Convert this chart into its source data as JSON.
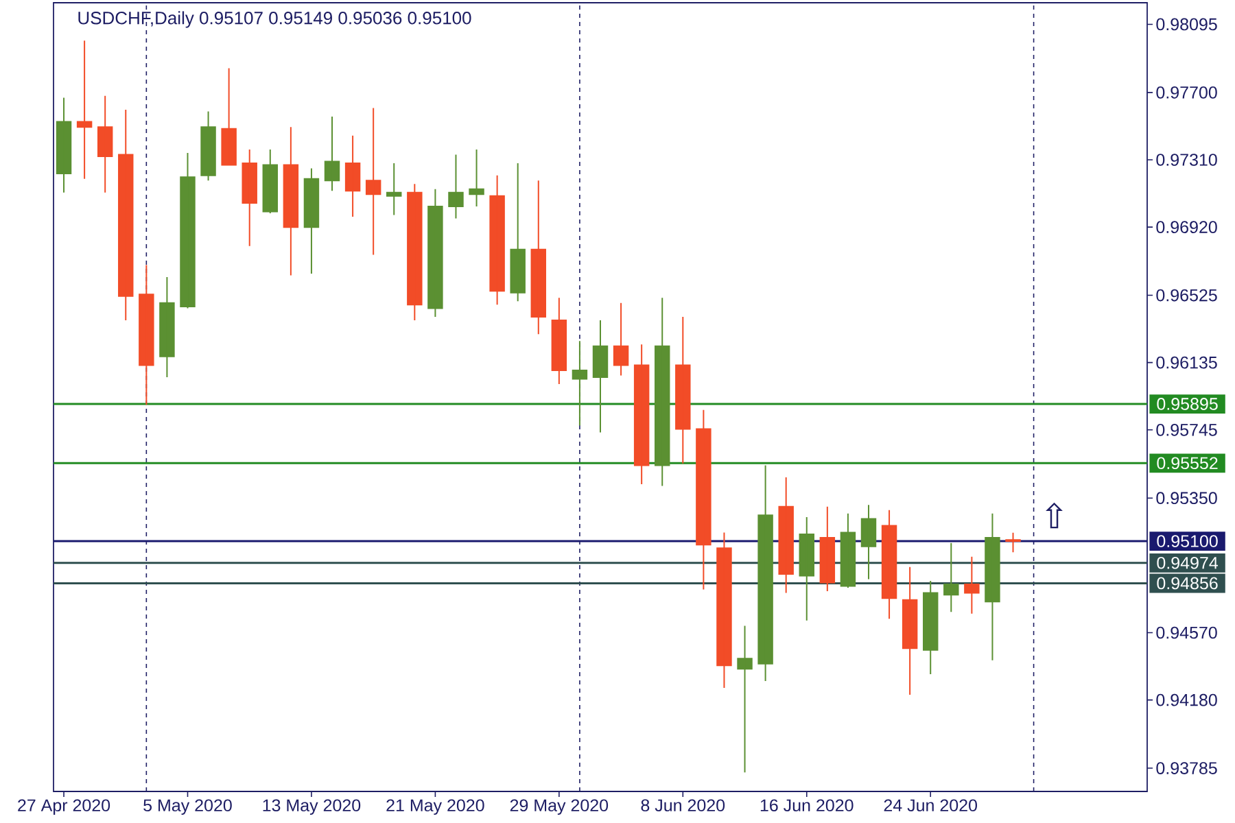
{
  "chart_data": {
    "type": "candlestick",
    "title": "USDCHF,Daily 0.95107 0.95149 0.95036 0.95100",
    "categories": [
      "27 Apr 2020",
      null,
      null,
      null,
      null,
      null,
      "5 May 2020",
      null,
      null,
      null,
      null,
      null,
      "13 May 2020",
      null,
      null,
      null,
      null,
      null,
      "21 May 2020",
      null,
      null,
      null,
      null,
      null,
      "29 May 2020",
      null,
      null,
      null,
      null,
      null,
      "8 Jun 2020",
      null,
      null,
      null,
      null,
      null,
      "16 Jun 2020",
      null,
      null,
      null,
      null,
      null,
      "24 Jun 2020",
      null,
      null,
      null,
      null,
      null,
      null,
      null,
      null,
      null,
      null
    ],
    "ohlc": [
      [
        0.9723,
        0.9767,
        0.9712,
        0.9753
      ],
      [
        0.9753,
        0.98,
        0.972,
        0.975
      ],
      [
        0.975,
        0.9768,
        0.9712,
        0.9733
      ],
      [
        0.9734,
        0.976,
        0.9638,
        0.9652
      ],
      [
        0.9653,
        0.967,
        0.9589,
        0.9612
      ],
      [
        0.9617,
        0.9663,
        0.9605,
        0.9648
      ],
      [
        0.9646,
        0.9735,
        0.9645,
        0.9721
      ],
      [
        0.9722,
        0.9759,
        0.9719,
        0.975
      ],
      [
        0.9749,
        0.9784,
        0.9728,
        0.9728
      ],
      [
        0.9729,
        0.9737,
        0.9681,
        0.9706
      ],
      [
        0.9701,
        0.9737,
        0.97,
        0.9728
      ],
      [
        0.9728,
        0.975,
        0.9664,
        0.9692
      ],
      [
        0.9692,
        0.9726,
        0.9665,
        0.972
      ],
      [
        0.9719,
        0.9756,
        0.9713,
        0.973
      ],
      [
        0.9729,
        0.9745,
        0.9698,
        0.9713
      ],
      [
        0.9719,
        0.9761,
        0.9676,
        0.9711
      ],
      [
        0.971,
        0.9729,
        0.9699,
        0.9712
      ],
      [
        0.9712,
        0.9717,
        0.9638,
        0.9647
      ],
      [
        0.9645,
        0.9714,
        0.964,
        0.9704
      ],
      [
        0.9704,
        0.9734,
        0.9697,
        0.9712
      ],
      [
        0.9711,
        0.9737,
        0.9704,
        0.9714
      ],
      [
        0.971,
        0.9722,
        0.9647,
        0.9655
      ],
      [
        0.9654,
        0.9729,
        0.9649,
        0.9679
      ],
      [
        0.9679,
        0.9719,
        0.963,
        0.964
      ],
      [
        0.9638,
        0.9651,
        0.9601,
        0.9609
      ],
      [
        0.9604,
        0.9626,
        0.9577,
        0.9609
      ],
      [
        0.9605,
        0.9638,
        0.9573,
        0.9623
      ],
      [
        0.9623,
        0.9648,
        0.9606,
        0.9612
      ],
      [
        0.9612,
        0.9624,
        0.9543,
        0.9554
      ],
      [
        0.9554,
        0.9651,
        0.9542,
        0.9623
      ],
      [
        0.9612,
        0.964,
        0.9555,
        0.9575
      ],
      [
        0.9575,
        0.9586,
        0.9482,
        0.9508
      ],
      [
        0.9506,
        0.9515,
        0.9425,
        0.9438
      ],
      [
        0.9436,
        0.9461,
        0.9376,
        0.9442
      ],
      [
        0.9439,
        0.9554,
        0.9429,
        0.9525
      ],
      [
        0.953,
        0.9547,
        0.948,
        0.9491
      ],
      [
        0.949,
        0.9524,
        0.9464,
        0.9514
      ],
      [
        0.9512,
        0.953,
        0.9481,
        0.9486
      ],
      [
        0.9484,
        0.9526,
        0.9483,
        0.9515
      ],
      [
        0.9507,
        0.9531,
        0.9488,
        0.9523
      ],
      [
        0.9519,
        0.9528,
        0.9465,
        0.9477
      ],
      [
        0.9476,
        0.9495,
        0.9421,
        0.9448
      ],
      [
        0.9447,
        0.9487,
        0.9433,
        0.948
      ],
      [
        0.9479,
        0.9509,
        0.9469,
        0.9485
      ],
      [
        0.9485,
        0.9501,
        0.9468,
        0.948
      ],
      [
        0.9475,
        0.9526,
        0.9441,
        0.9512
      ],
      [
        0.95107,
        0.95149,
        0.95036,
        0.951
      ],
      null,
      null,
      null,
      null,
      null,
      null
    ],
    "colors": [
      "#5b9032",
      "#f24c27",
      "#f24c27",
      "#f24c27",
      "#f24c27",
      "#5b9032",
      "#5b9032",
      "#5b9032",
      "#f24c27",
      "#f24c27",
      "#5b9032",
      "#f24c27",
      "#5b9032",
      "#5b9032",
      "#f24c27",
      "#f24c27",
      "#5b9032",
      "#f24c27",
      "#5b9032",
      "#5b9032",
      "#5b9032",
      "#f24c27",
      "#5b9032",
      "#f24c27",
      "#f24c27",
      "#5b9032",
      "#5b9032",
      "#f24c27",
      "#f24c27",
      "#5b9032",
      "#f24c27",
      "#f24c27",
      "#f24c27",
      "#5b9032",
      "#5b9032",
      "#f24c27",
      "#5b9032",
      "#f24c27",
      "#5b9032",
      "#5b9032",
      "#f24c27",
      "#f24c27",
      "#5b9032",
      "#5b9032",
      "#f24c27",
      "#5b9032",
      "#f24c27",
      null,
      null,
      null,
      null,
      null,
      null
    ],
    "ylim": [
      0.9365,
      0.9822
    ],
    "yticks": [
      {
        "value": 0.98095,
        "label": "0.98095"
      },
      {
        "value": 0.977,
        "label": "0.97700"
      },
      {
        "value": 0.9731,
        "label": "0.97310"
      },
      {
        "value": 0.9692,
        "label": "0.96920"
      },
      {
        "value": 0.96525,
        "label": "0.96525"
      },
      {
        "value": 0.96135,
        "label": "0.96135"
      },
      {
        "value": 0.95745,
        "label": "0.95745"
      },
      {
        "value": 0.9535,
        "label": "0.95350"
      },
      {
        "value": 0.9457,
        "label": "0.94570"
      },
      {
        "value": 0.9418,
        "label": "0.94180"
      },
      {
        "value": 0.93785,
        "label": "0.93785"
      }
    ],
    "ref_lines": [
      {
        "axis": "y",
        "value": 0.95895,
        "label": "0.95895",
        "color": "#228b22"
      },
      {
        "axis": "y",
        "value": 0.95552,
        "label": "0.95552",
        "color": "#228b22"
      },
      {
        "axis": "y",
        "value": 0.951,
        "label": "0.95100",
        "color": "#1a1a6e"
      },
      {
        "axis": "y",
        "value": 0.94974,
        "label": "0.94974",
        "color": "#2f4f4f"
      },
      {
        "axis": "y",
        "value": 0.94856,
        "label": "0.94856",
        "color": "#2f4f4f"
      }
    ],
    "grid": "x",
    "annotations": [
      "⇧"
    ]
  }
}
